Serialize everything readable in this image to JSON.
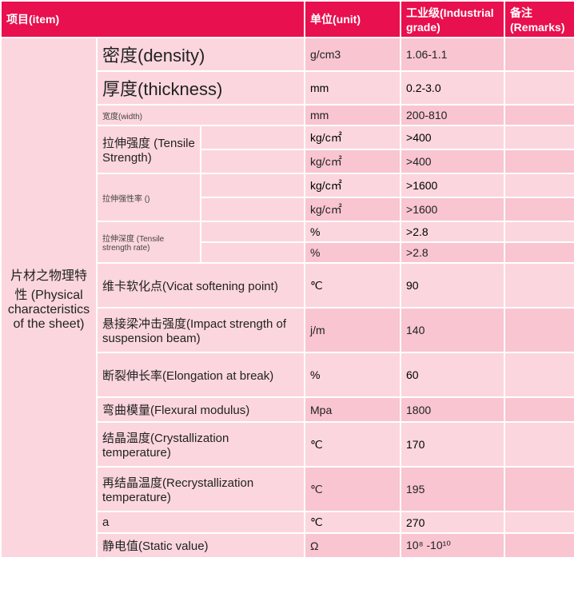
{
  "header": {
    "item": "项目(item)",
    "unit": "单位(unit)",
    "grade": "工业级(Industrial grade)",
    "remarks": "备注(Remarks)"
  },
  "rowGroupLabel": "片材之物理特性 (Physical characteristics of the sheet)",
  "rows": [
    {
      "label": "密度(density)",
      "size": "big",
      "span": 2,
      "unit": "g/cm3",
      "val": "1.06-1.1",
      "shade": "a"
    },
    {
      "label": "厚度(thickness)",
      "size": "big",
      "span": 2,
      "unit": "mm",
      "val": "0.2-3.0",
      "shade": "b"
    },
    {
      "label": "宽度(width)",
      "size": "sm",
      "span": 2,
      "unit": "mm",
      "val": "200-810",
      "shade": "a"
    },
    {
      "label": "拉伸强度 (Tensile Strength)",
      "size": "med",
      "subrows": [
        {
          "unit": "kg/c㎡",
          "val": ">400",
          "shade": "b"
        },
        {
          "unit": "kg/c㎡",
          "val": ">400",
          "shade": "a"
        }
      ]
    },
    {
      "label": "拉伸强性率 ()",
      "size": "sm",
      "subrows": [
        {
          "unit": "kg/c㎡",
          "val": ">1600",
          "shade": "b"
        },
        {
          "unit": "kg/c㎡",
          "val": ">1600",
          "shade": "a"
        }
      ]
    },
    {
      "label": "拉伸深度 (Tensile strength rate)",
      "size": "sm",
      "subrows": [
        {
          "unit": "%",
          "val": ">2.8",
          "shade": "b"
        },
        {
          "unit": "%",
          "val": ">2.8",
          "shade": "a"
        }
      ]
    },
    {
      "label": "维卡软化点(Vicat softening point)",
      "size": "med",
      "span": 2,
      "unit": "℃",
      "val": "90",
      "shade": "b",
      "tall": 1
    },
    {
      "label": "悬接梁冲击强度(Impact strength of suspension beam)",
      "size": "med",
      "span": 2,
      "unit": "j/m",
      "val": "140",
      "shade": "a",
      "tall": 1
    },
    {
      "label": "断裂伸长率(Elongation at break)",
      "size": "med",
      "span": 2,
      "unit": "%",
      "val": "60",
      "shade": "b",
      "tall": 1
    },
    {
      "label": "弯曲模量(Flexural modulus)",
      "size": "med",
      "span": 2,
      "unit": "Mpa",
      "val": "1800",
      "shade": "a"
    },
    {
      "label": "结晶温度(Crystallization temperature)",
      "size": "med",
      "span": 2,
      "unit": "℃",
      "val": "170",
      "shade": "b",
      "tall": 1
    },
    {
      "label": "再结晶温度(Recrystallization temperature)",
      "size": "med",
      "span": 2,
      "unit": "℃",
      "val": "195",
      "shade": "a",
      "tall": 1
    },
    {
      "label": "a",
      "size": "med",
      "span": 2,
      "unit": "℃",
      "val": "270",
      "shade": "b"
    },
    {
      "label": "静电值(Static value)",
      "size": "med",
      "span": 2,
      "unit": "Ω",
      "val": "10⁸ -10¹⁰",
      "shade": "a"
    }
  ],
  "colors": {
    "header_bg": "#e8104e",
    "header_fg": "#ffffff",
    "light": "#fbd6de",
    "dark": "#f8c5d1",
    "border": "#ffffff",
    "text": "#222222"
  },
  "fonts": {
    "big": 22,
    "med": 15,
    "sm": 10,
    "cell": 14,
    "header": 14
  }
}
